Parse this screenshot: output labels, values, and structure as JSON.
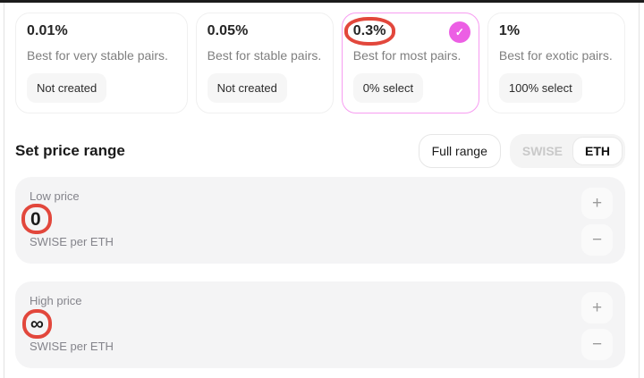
{
  "colors": {
    "accent_pink": "#ec5fe4",
    "selected_card_border": "#f79cf1",
    "annotation_red": "#e2473c",
    "card_gray": "#f4f4f5"
  },
  "fee_tiers": {
    "options": [
      {
        "fee": "0.01%",
        "description": "Best for very stable pairs.",
        "badge": "Not created",
        "selected": false
      },
      {
        "fee": "0.05%",
        "description": "Best for stable pairs.",
        "badge": "Not created",
        "selected": false
      },
      {
        "fee": "0.3%",
        "description": "Best for most pairs.",
        "badge": "0% select",
        "selected": true
      },
      {
        "fee": "1%",
        "description": "Best for exotic pairs.",
        "badge": "100% select",
        "selected": false
      }
    ]
  },
  "price_range": {
    "title": "Set price range",
    "full_range_label": "Full range",
    "currency_toggle": {
      "options": [
        "SWISE",
        "ETH"
      ],
      "selected": "ETH"
    },
    "low": {
      "label": "Low price",
      "value": "0",
      "unit": "SWISE per ETH"
    },
    "high": {
      "label": "High price",
      "value": "∞",
      "unit": "SWISE per ETH"
    }
  },
  "icons": {
    "check": "✓",
    "plus": "+",
    "minus": "−"
  },
  "annotations": {
    "color": "#e2473c",
    "targets": [
      "0.3% fee tier",
      "low price value 0",
      "high price value ∞"
    ]
  }
}
